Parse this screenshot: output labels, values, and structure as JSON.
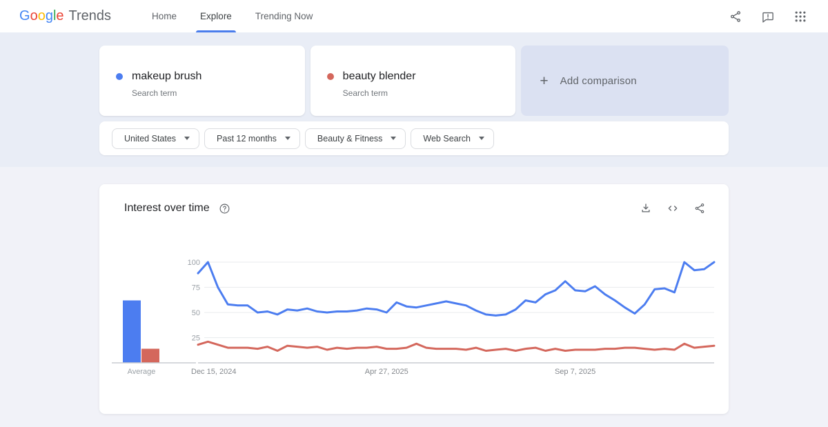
{
  "nav": {
    "logo": {
      "letters": [
        "G",
        "o",
        "o",
        "g",
        "l",
        "e"
      ],
      "suffix": "Trends"
    },
    "tabs": [
      {
        "label": "Home",
        "active": false
      },
      {
        "label": "Explore",
        "active": true
      },
      {
        "label": "Trending Now",
        "active": false
      }
    ],
    "icons": [
      "share-icon",
      "feedback-icon",
      "apps-grid-icon"
    ]
  },
  "comparison": {
    "terms": [
      {
        "term": "makeup brush",
        "type_label": "Search term",
        "color": "#4c7df0"
      },
      {
        "term": "beauty blender",
        "type_label": "Search term",
        "color": "#d4675c"
      }
    ],
    "add_label": "Add comparison"
  },
  "filters": [
    {
      "label": "United States"
    },
    {
      "label": "Past 12 months"
    },
    {
      "label": "Beauty & Fitness"
    },
    {
      "label": "Web Search"
    }
  ],
  "widget": {
    "title": "Interest over time",
    "icons": [
      "help-icon",
      "download-icon",
      "embed-icon",
      "share-icon"
    ]
  },
  "chart_data": {
    "type": "line",
    "title": "Interest over time",
    "ylim": [
      0,
      100
    ],
    "y_ticks": [
      25,
      50,
      75,
      100
    ],
    "grid": true,
    "legend_position": "none",
    "x_tick_labels": [
      "Dec 15, 2024",
      "Apr 27, 2025",
      "Sep 7, 2025"
    ],
    "x_tick_indices": [
      0,
      19,
      38
    ],
    "average_label": "Average",
    "series": [
      {
        "name": "makeup brush",
        "color": "#4c7df0",
        "average": 62,
        "values": [
          89,
          100,
          75,
          58,
          57,
          57,
          50,
          51,
          48,
          53,
          52,
          54,
          51,
          50,
          51,
          51,
          52,
          54,
          53,
          50,
          60,
          56,
          55,
          57,
          59,
          61,
          59,
          57,
          52,
          48,
          47,
          48,
          53,
          62,
          60,
          68,
          72,
          81,
          72,
          71,
          76,
          68,
          62,
          55,
          49,
          58,
          73,
          74,
          70,
          100,
          92,
          93,
          100
        ]
      },
      {
        "name": "beauty blender",
        "color": "#d4675c",
        "average": 14,
        "values": [
          18,
          21,
          18,
          15,
          15,
          15,
          14,
          16,
          12,
          17,
          16,
          15,
          16,
          13,
          15,
          14,
          15,
          15,
          16,
          14,
          14,
          15,
          19,
          15,
          14,
          14,
          14,
          13,
          15,
          12,
          13,
          14,
          12,
          14,
          15,
          12,
          14,
          12,
          13,
          13,
          13,
          14,
          14,
          15,
          15,
          14,
          13,
          14,
          13,
          19,
          15,
          16,
          17
        ]
      }
    ],
    "colors": {
      "grid": "#e9ebee",
      "axis": "#c9ccd1",
      "tick_text": "#9aa0a6",
      "date_text": "#84888d"
    }
  }
}
